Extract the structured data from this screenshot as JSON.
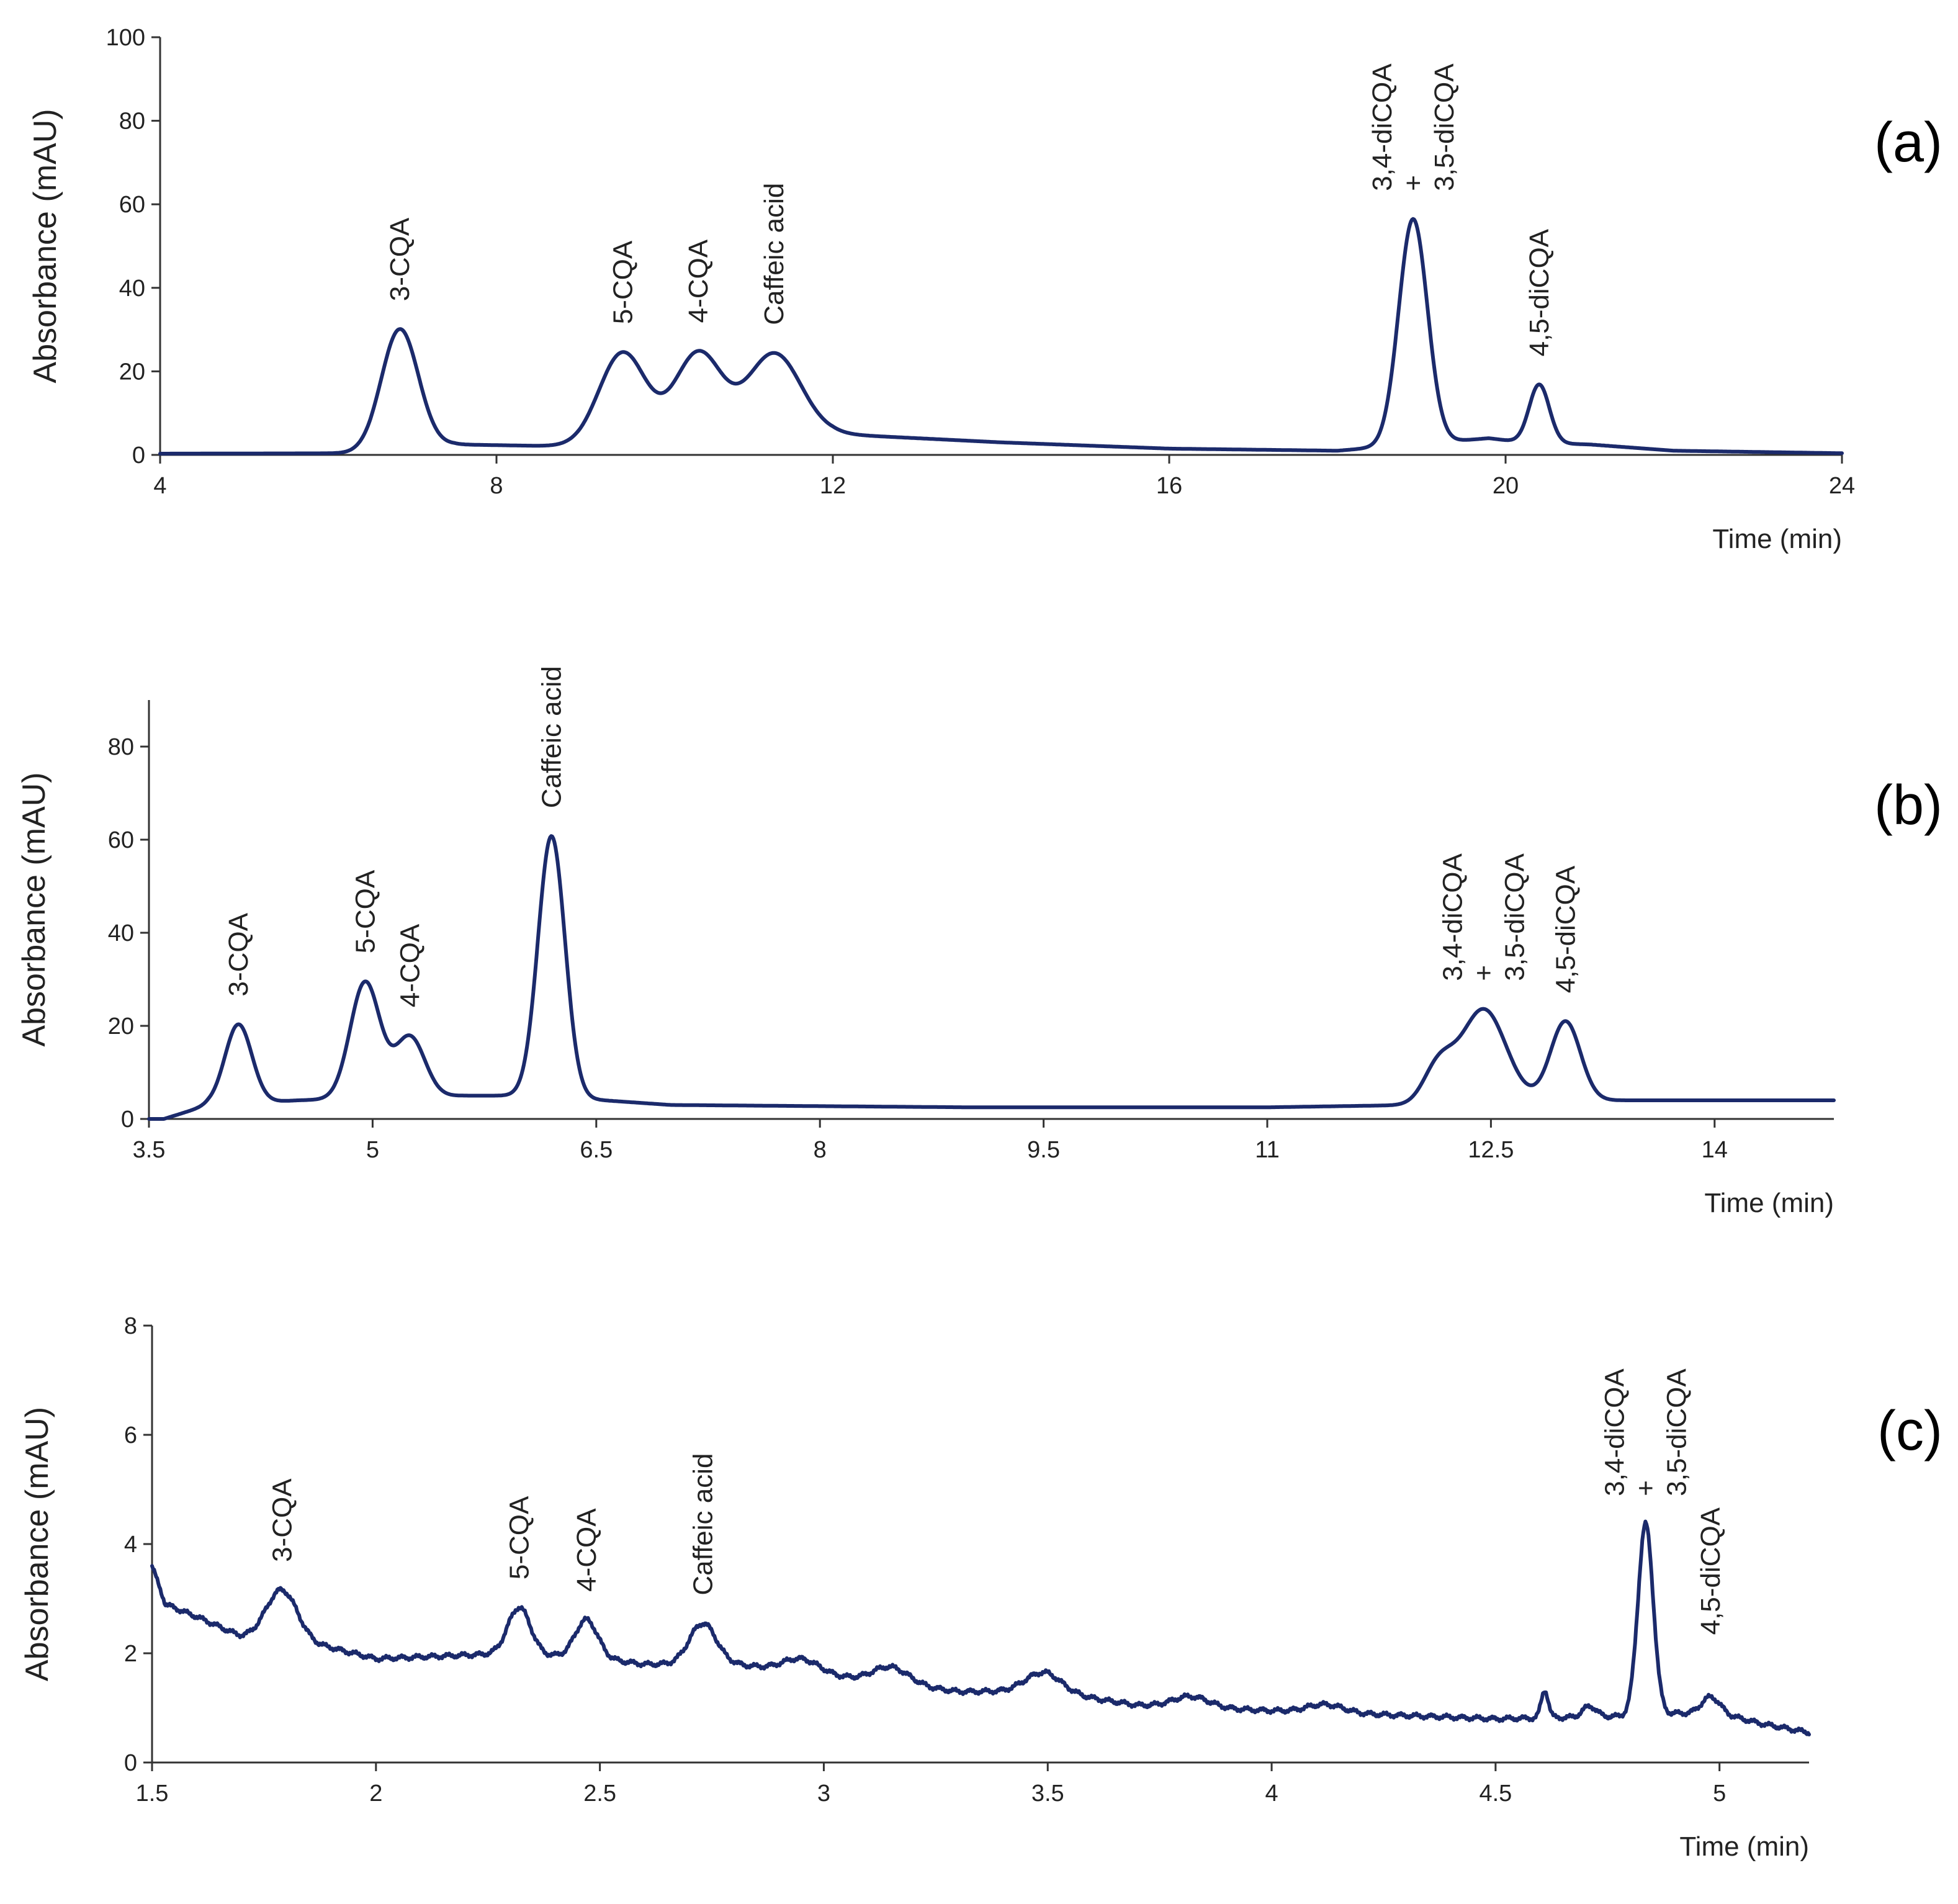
{
  "chart_data": [
    {
      "type": "line",
      "panel_label": "(a)",
      "xlabel": "Time (min)",
      "ylabel": "Absorbance (mAU)",
      "xlim": [
        4,
        24
      ],
      "ylim": [
        0,
        100
      ],
      "xticks": [
        4,
        8,
        12,
        16,
        20,
        24
      ],
      "yticks": [
        0,
        20,
        40,
        60,
        80,
        100
      ],
      "color": "#1b2a6b",
      "baseline": [
        [
          4,
          0.3
        ],
        [
          6.5,
          0.4
        ],
        [
          7.5,
          2.5
        ],
        [
          9,
          2
        ],
        [
          12,
          5
        ],
        [
          14,
          3
        ],
        [
          16,
          1.5
        ],
        [
          18,
          1
        ],
        [
          19.8,
          4
        ],
        [
          20.2,
          3
        ],
        [
          21,
          2.5
        ],
        [
          22,
          1
        ],
        [
          24,
          0.4
        ]
      ],
      "peaks": [
        {
          "label": "3-CQA",
          "rt": 6.85,
          "height": 29,
          "width": 0.22
        },
        {
          "label": "5-CQA",
          "rt": 9.5,
          "height": 22,
          "width": 0.28
        },
        {
          "label": "4-CQA",
          "rt": 10.4,
          "height": 21,
          "width": 0.28
        },
        {
          "label": "Caffeic acid",
          "rt": 11.3,
          "height": 20,
          "width": 0.32
        },
        {
          "label": "3,4-diCQA|+|3,5-diCQA",
          "rt": 18.9,
          "height": 54,
          "width": 0.17
        },
        {
          "label": "4,5-diCQA",
          "rt": 20.4,
          "height": 14,
          "width": 0.12
        }
      ]
    },
    {
      "type": "line",
      "panel_label": "(b)",
      "xlabel": "Time (min)",
      "ylabel": "Absorbance (mAU)",
      "xlim": [
        3.5,
        14.8
      ],
      "ylim": [
        0,
        90
      ],
      "xticks": [
        3.5,
        5,
        6.5,
        8,
        9.5,
        11,
        12.5,
        14
      ],
      "yticks": [
        0,
        20,
        40,
        60,
        80
      ],
      "color": "#1b2a6b",
      "baseline": [
        [
          3.6,
          0
        ],
        [
          3.9,
          3
        ],
        [
          4.5,
          4
        ],
        [
          5.6,
          5
        ],
        [
          6.1,
          5
        ],
        [
          7,
          3
        ],
        [
          9,
          2.5
        ],
        [
          11,
          2.5
        ],
        [
          12,
          3
        ],
        [
          12.8,
          4
        ],
        [
          14.8,
          4
        ]
      ],
      "peaks": [
        {
          "label": "3-CQA",
          "rt": 4.1,
          "height": 17,
          "width": 0.09
        },
        {
          "label": "5-CQA",
          "rt": 4.95,
          "height": 25,
          "width": 0.1
        },
        {
          "label": "4-CQA",
          "rt": 5.25,
          "height": 13,
          "width": 0.1
        },
        {
          "label": "Caffeic acid",
          "rt": 6.2,
          "height": 56,
          "width": 0.09
        },
        {
          "label": "3,4-diCQA|+|3,5-diCQA",
          "rt": 12.45,
          "height": 20,
          "width": 0.15
        },
        {
          "label": "",
          "rt": 12.15,
          "height": 8,
          "width": 0.1
        },
        {
          "label": "4,5-diCQA",
          "rt": 13.0,
          "height": 17,
          "width": 0.1
        }
      ]
    },
    {
      "type": "line",
      "panel_label": "(c)",
      "xlabel": "Time (min)",
      "ylabel": "Absorbance (mAU)",
      "xlim": [
        1.5,
        5.2
      ],
      "ylim": [
        0,
        8
      ],
      "xticks": [
        1.5,
        2,
        2.5,
        3,
        3.5,
        4,
        4.5,
        5
      ],
      "yticks": [
        0,
        2,
        4,
        6,
        8
      ],
      "color": "#1b2a6b",
      "noise": 0.05,
      "baseline": [
        [
          1.5,
          3.6
        ],
        [
          1.53,
          2.9
        ],
        [
          1.62,
          2.6
        ],
        [
          1.7,
          2.3
        ],
        [
          1.9,
          2.1
        ],
        [
          2.0,
          1.9
        ],
        [
          2.3,
          2.0
        ],
        [
          2.5,
          1.9
        ],
        [
          2.6,
          1.8
        ],
        [
          2.8,
          1.8
        ],
        [
          3.0,
          1.6
        ],
        [
          3.1,
          1.5
        ],
        [
          3.3,
          1.3
        ],
        [
          3.5,
          1.3
        ],
        [
          3.7,
          1.05
        ],
        [
          4.0,
          0.95
        ],
        [
          4.5,
          0.8
        ],
        [
          4.8,
          0.85
        ],
        [
          4.9,
          0.9
        ],
        [
          5.0,
          0.9
        ],
        [
          5.1,
          0.7
        ],
        [
          5.2,
          0.55
        ]
      ],
      "peaks": [
        {
          "label": "3-CQA",
          "rt": 1.79,
          "height": 0.95,
          "width": 0.035
        },
        {
          "label": "5-CQA",
          "rt": 2.32,
          "height": 0.85,
          "width": 0.025
        },
        {
          "label": "4-CQA",
          "rt": 2.47,
          "height": 0.7,
          "width": 0.025
        },
        {
          "label": "Caffeic acid",
          "rt": 2.73,
          "height": 0.75,
          "width": 0.03
        },
        {
          "label": "",
          "rt": 2.95,
          "height": 0.25,
          "width": 0.04
        },
        {
          "label": "",
          "rt": 3.15,
          "height": 0.3,
          "width": 0.04
        },
        {
          "label": "",
          "rt": 3.49,
          "height": 0.35,
          "width": 0.04
        },
        {
          "label": "",
          "rt": 3.82,
          "height": 0.2,
          "width": 0.04
        },
        {
          "label": "",
          "rt": 4.12,
          "height": 0.15,
          "width": 0.04
        },
        {
          "label": "",
          "rt": 4.61,
          "height": 0.5,
          "width": 0.008
        },
        {
          "label": "",
          "rt": 4.71,
          "height": 0.2,
          "width": 0.015
        },
        {
          "label": "3,4-diCQA|+|3,5-diCQA",
          "rt": 4.835,
          "height": 3.5,
          "width": 0.017
        },
        {
          "label": "4,5-diCQA",
          "rt": 4.98,
          "height": 0.3,
          "width": 0.02
        }
      ]
    }
  ]
}
